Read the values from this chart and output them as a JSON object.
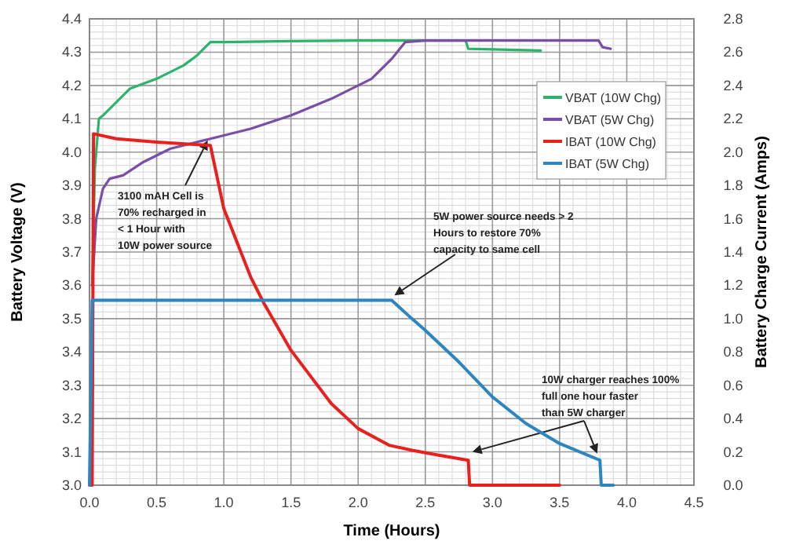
{
  "chart_data": {
    "type": "line",
    "xlabel": "Time (Hours)",
    "ylabel": "Battery Voltage (V)",
    "y2label": "Battery Charge Current (Amps)",
    "xlim": [
      0,
      4.5
    ],
    "xticks": [
      {
        "value": 0,
        "label": "0.0"
      },
      0.5,
      {
        "value": 1,
        "label": "1.0"
      },
      1.5,
      {
        "value": 2,
        "label": "2.0"
      },
      2.5,
      {
        "value": 3,
        "label": "3.0"
      },
      3.5,
      {
        "value": 4,
        "label": "4.0"
      },
      4.5
    ],
    "ylim": [
      3.0,
      4.4
    ],
    "yticks": [
      {
        "value": 3,
        "label": "3.0"
      },
      3.1,
      3.2,
      3.3,
      3.4,
      3.5,
      3.6,
      3.7,
      3.8,
      3.9,
      {
        "value": 4,
        "label": "4.0"
      },
      4.1,
      4.2,
      4.3,
      4.4
    ],
    "y2lim": [
      0,
      2.8
    ],
    "y2ticks": [
      {
        "value": 0,
        "label": "0.0"
      },
      0.2,
      0.4,
      0.6,
      0.8,
      {
        "value": 1,
        "label": "1.0"
      },
      1.2,
      1.4,
      1.6,
      1.8,
      {
        "value": 2,
        "label": "2.0"
      },
      2.2,
      2.4,
      2.6,
      2.8
    ],
    "grid": true,
    "legend": "top right",
    "series": [
      {
        "name": "VBAT (10W Chg)",
        "color": "#2db36b",
        "x": [
          0.02,
          0.04,
          0.07,
          0.1,
          0.2,
          0.3,
          0.5,
          0.7,
          0.8,
          0.9,
          1.0,
          1.5,
          2.0,
          2.8,
          2.82,
          3.36
        ],
        "values": [
          3.6,
          3.95,
          4.1,
          4.11,
          4.15,
          4.19,
          4.22,
          4.26,
          4.29,
          4.33,
          4.33,
          4.333,
          4.335,
          4.335,
          4.31,
          4.305
        ]
      },
      {
        "name": "VBAT (5W Chg)",
        "color": "#7a4ea8",
        "x": [
          0.02,
          0.05,
          0.1,
          0.15,
          0.25,
          0.4,
          0.6,
          0.9,
          1.2,
          1.5,
          1.8,
          2.1,
          2.25,
          2.35,
          2.5,
          3.0,
          3.79,
          3.82,
          3.88
        ],
        "values": [
          3.6,
          3.8,
          3.89,
          3.92,
          3.93,
          3.97,
          4.01,
          4.04,
          4.07,
          4.11,
          4.16,
          4.22,
          4.28,
          4.33,
          4.335,
          4.335,
          4.335,
          4.315,
          4.31
        ]
      },
      {
        "name": "IBAT (10W Chg)",
        "color": "#e8201e",
        "axis": "y2",
        "x": [
          0.0,
          0.02,
          0.03,
          0.2,
          0.5,
          0.9,
          1.0,
          1.2,
          1.3,
          1.5,
          1.8,
          2.0,
          2.23,
          2.4,
          2.6,
          2.82,
          2.83,
          3.5
        ],
        "values": [
          0,
          0,
          2.11,
          2.08,
          2.06,
          2.04,
          1.66,
          1.25,
          1.09,
          0.81,
          0.49,
          0.34,
          0.24,
          0.21,
          0.18,
          0.15,
          0,
          0
        ]
      },
      {
        "name": "IBAT (5W Chg)",
        "color": "#2e86c1",
        "axis": "y2",
        "x": [
          0.0,
          0.02,
          0.5,
          1.0,
          2.25,
          2.4,
          2.5,
          2.75,
          3.0,
          3.25,
          3.5,
          3.8,
          3.81,
          3.9
        ],
        "values": [
          0,
          1.11,
          1.11,
          1.11,
          1.11,
          1.0,
          0.93,
          0.74,
          0.53,
          0.37,
          0.25,
          0.15,
          0,
          0
        ]
      }
    ],
    "annotations": [
      "3100 mAH Cell is 70% recharged in < 1 Hour with 10W power source",
      "5W power source needs > 2 Hours to restore 70% capacity to same cell",
      "10W charger reaches 100% full one hour faster than 5W charger"
    ]
  }
}
